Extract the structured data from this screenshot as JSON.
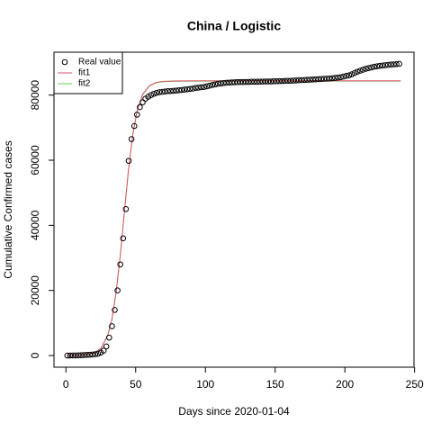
{
  "chart_data": {
    "type": "scatter",
    "title": "China / Logistic",
    "xlabel": "Days since 2020-01-04",
    "ylabel": "Cumulative Confirmed cases",
    "xlim": [
      -8.56,
      249.56
    ],
    "ylim": [
      -3584,
      93184
    ],
    "xticks": [
      0,
      50,
      100,
      150,
      200,
      250
    ],
    "yticks": [
      0,
      20000,
      40000,
      60000,
      80000
    ],
    "legend": "top-left",
    "series": [
      {
        "name": "Real value",
        "color": "#000000",
        "style": "points",
        "x": [
          1,
          3,
          5,
          7,
          9,
          11,
          13,
          15,
          17,
          19,
          21,
          23,
          25,
          27,
          29,
          31,
          33,
          35,
          37,
          39,
          41,
          43,
          45,
          47,
          49,
          51,
          53,
          55,
          57,
          59,
          61,
          63,
          65,
          67,
          69,
          71,
          73,
          75,
          77,
          79,
          81,
          83,
          85,
          87,
          89,
          91,
          93,
          95,
          97,
          99,
          101,
          103,
          105,
          107,
          109,
          111,
          113,
          115,
          117,
          119,
          121,
          123,
          125,
          127,
          129,
          131,
          133,
          135,
          137,
          139,
          141,
          143,
          145,
          147,
          149,
          151,
          153,
          155,
          157,
          159,
          161,
          163,
          165,
          167,
          169,
          171,
          173,
          175,
          177,
          179,
          181,
          183,
          185,
          187,
          189,
          191,
          193,
          195,
          197,
          199,
          201,
          203,
          205,
          207,
          209,
          211,
          213,
          215,
          217,
          219,
          221,
          223,
          225,
          227,
          229,
          231,
          233,
          235,
          237,
          239
        ],
        "values": [
          0,
          10,
          20,
          40,
          60,
          100,
          150,
          200,
          250,
          300,
          400,
          550,
          900,
          1500,
          2800,
          5500,
          9000,
          14000,
          20000,
          28000,
          36000,
          45000,
          59800,
          66500,
          70500,
          74000,
          76300,
          77800,
          78900,
          79500,
          80000,
          80400,
          80700,
          80900,
          81000,
          81100,
          81200,
          81250,
          81300,
          81400,
          81500,
          81600,
          81700,
          81800,
          81900,
          82000,
          82200,
          82300,
          82400,
          82500,
          82700,
          82900,
          83100,
          83300,
          83500,
          83600,
          83700,
          83800,
          83850,
          83900,
          83950,
          84000,
          84000,
          84000,
          84050,
          84050,
          84100,
          84100,
          84100,
          84150,
          84150,
          84200,
          84200,
          84200,
          84250,
          84250,
          84300,
          84300,
          84350,
          84400,
          84400,
          84450,
          84500,
          84550,
          84600,
          84650,
          84700,
          84750,
          84800,
          84850,
          84900,
          84950,
          85000,
          85050,
          85100,
          85200,
          85300,
          85400,
          85500,
          85700,
          85900,
          86100,
          86400,
          86800,
          87200,
          87500,
          87800,
          88100,
          88300,
          88500,
          88700,
          88850,
          89000,
          89100,
          89200,
          89300,
          89400,
          89450,
          89500,
          89600
        ]
      },
      {
        "name": "fit1",
        "color": "#DF536B",
        "style": "line",
        "x": [
          1,
          10,
          20,
          25,
          30,
          33,
          36,
          39,
          42,
          45,
          48,
          51,
          55,
          60,
          65,
          70,
          80,
          100,
          150,
          200,
          240
        ],
        "values": [
          11.4,
          82,
          740,
          2180,
          6230,
          11270,
          19400,
          30880,
          44510,
          57690,
          68120,
          75100,
          80280,
          82980,
          83920,
          84240,
          84380,
          84400,
          84400,
          84400,
          84400
        ]
      },
      {
        "name": "fit2",
        "color": "#61D04F",
        "style": "line",
        "x": [
          1,
          10,
          20,
          25,
          30,
          33,
          36,
          39,
          42,
          45,
          48,
          51,
          55,
          60,
          65,
          70,
          80,
          100,
          150,
          200,
          240
        ],
        "values": [
          11.4,
          82,
          739,
          2177,
          6223,
          11257,
          19377,
          30844,
          44457,
          57622,
          68040,
          75011,
          80185,
          82882,
          83821,
          84140,
          84280,
          84300,
          84300,
          84300,
          84300
        ]
      }
    ]
  }
}
